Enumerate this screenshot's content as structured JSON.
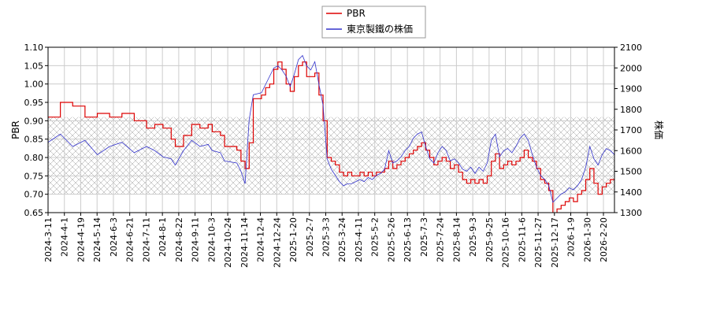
{
  "chart_data": {
    "type": "line",
    "left_axis": {
      "label": "PBR",
      "ylim": [
        0.65,
        1.1
      ],
      "ticks": [
        "0.65",
        "0.70",
        "0.75",
        "0.80",
        "0.85",
        "0.90",
        "0.95",
        "1.00",
        "1.05",
        "1.10"
      ]
    },
    "right_axis": {
      "label": "株価",
      "ylim": [
        1300,
        2100
      ],
      "ticks": [
        "1300",
        "1400",
        "1500",
        "1600",
        "1700",
        "1800",
        "1900",
        "2000",
        "2100"
      ]
    },
    "x_ticks": [
      "2024-3-11",
      "2024-4-1",
      "2024-4-19",
      "2024-5-14",
      "2024-6-3",
      "2024-6-21",
      "2024-7-11",
      "2024-8-1",
      "2024-8-22",
      "2024-9-11",
      "2024-10-3",
      "2024-10-24",
      "2024-11-14",
      "2024-12-4",
      "2024-12-24",
      "2025-1-20",
      "2025-2-7",
      "2025-3-3",
      "2025-3-24",
      "2025-4-11",
      "2025-5-2",
      "2025-5-26",
      "2025-6-13",
      "2025-7-3",
      "2025-7-24",
      "2025-8-14",
      "2025-9-3",
      "2025-9-25",
      "2025-10-16",
      "2025-11-6",
      "2025-11-27",
      "2025-12-17",
      "2026-1-9",
      "2026-1-30",
      "2026-2-20"
    ],
    "grid": true,
    "band": {
      "axis": "left",
      "range": [
        0.7,
        0.91
      ],
      "pattern": "crosshatch"
    },
    "legend": {
      "placement": "top-center"
    },
    "series": [
      {
        "name": "PBR",
        "axis": "left",
        "color": "#dd0000",
        "values": [
          [
            0,
            0.91
          ],
          [
            3,
            0.95
          ],
          [
            6,
            0.94
          ],
          [
            9,
            0.91
          ],
          [
            12,
            0.92
          ],
          [
            15,
            0.91
          ],
          [
            18,
            0.92
          ],
          [
            21,
            0.9
          ],
          [
            24,
            0.88
          ],
          [
            26,
            0.89
          ],
          [
            28,
            0.88
          ],
          [
            30,
            0.85
          ],
          [
            31,
            0.83
          ],
          [
            33,
            0.86
          ],
          [
            35,
            0.89
          ],
          [
            37,
            0.88
          ],
          [
            39,
            0.89
          ],
          [
            40,
            0.87
          ],
          [
            42,
            0.86
          ],
          [
            43,
            0.83
          ],
          [
            46,
            0.82
          ],
          [
            47,
            0.79
          ],
          [
            48,
            0.77
          ],
          [
            49,
            0.84
          ],
          [
            50,
            0.96
          ],
          [
            52,
            0.97
          ],
          [
            53,
            0.99
          ],
          [
            54,
            1.0
          ],
          [
            55,
            1.04
          ],
          [
            56,
            1.06
          ],
          [
            57,
            1.04
          ],
          [
            58,
            1.0
          ],
          [
            59,
            0.98
          ],
          [
            60,
            1.02
          ],
          [
            61,
            1.05
          ],
          [
            62,
            1.06
          ],
          [
            63,
            1.02
          ],
          [
            64,
            1.02
          ],
          [
            65,
            1.03
          ],
          [
            66,
            0.97
          ],
          [
            67,
            0.9
          ],
          [
            68,
            0.8
          ],
          [
            69,
            0.79
          ],
          [
            70,
            0.78
          ],
          [
            71,
            0.76
          ],
          [
            72,
            0.75
          ],
          [
            73,
            0.76
          ],
          [
            74,
            0.75
          ],
          [
            75,
            0.75
          ],
          [
            76,
            0.76
          ],
          [
            77,
            0.75
          ],
          [
            78,
            0.76
          ],
          [
            79,
            0.75
          ],
          [
            80,
            0.76
          ],
          [
            81,
            0.76
          ],
          [
            82,
            0.77
          ],
          [
            83,
            0.79
          ],
          [
            84,
            0.77
          ],
          [
            85,
            0.78
          ],
          [
            86,
            0.79
          ],
          [
            87,
            0.8
          ],
          [
            88,
            0.81
          ],
          [
            89,
            0.82
          ],
          [
            90,
            0.83
          ],
          [
            91,
            0.84
          ],
          [
            92,
            0.82
          ],
          [
            93,
            0.8
          ],
          [
            94,
            0.78
          ],
          [
            95,
            0.79
          ],
          [
            96,
            0.8
          ],
          [
            97,
            0.79
          ],
          [
            98,
            0.77
          ],
          [
            99,
            0.78
          ],
          [
            100,
            0.76
          ],
          [
            101,
            0.74
          ],
          [
            102,
            0.73
          ],
          [
            103,
            0.74
          ],
          [
            104,
            0.73
          ],
          [
            105,
            0.74
          ],
          [
            106,
            0.73
          ],
          [
            107,
            0.75
          ],
          [
            108,
            0.79
          ],
          [
            109,
            0.81
          ],
          [
            110,
            0.77
          ],
          [
            111,
            0.78
          ],
          [
            112,
            0.79
          ],
          [
            113,
            0.78
          ],
          [
            114,
            0.79
          ],
          [
            115,
            0.8
          ],
          [
            116,
            0.82
          ],
          [
            117,
            0.8
          ],
          [
            118,
            0.79
          ],
          [
            119,
            0.77
          ],
          [
            120,
            0.74
          ],
          [
            121,
            0.73
          ],
          [
            122,
            0.71
          ],
          [
            123,
            0.64
          ],
          [
            124,
            0.66
          ],
          [
            125,
            0.67
          ],
          [
            126,
            0.68
          ],
          [
            127,
            0.69
          ],
          [
            128,
            0.68
          ],
          [
            129,
            0.7
          ],
          [
            130,
            0.71
          ],
          [
            131,
            0.74
          ],
          [
            132,
            0.77
          ],
          [
            133,
            0.73
          ],
          [
            134,
            0.7
          ],
          [
            135,
            0.72
          ],
          [
            136,
            0.73
          ],
          [
            137,
            0.74
          ],
          [
            138,
            0.73
          ]
        ]
      },
      {
        "name": "東京製鐵の株価",
        "axis": "right",
        "color": "#3333cc",
        "values": [
          [
            0,
            1640
          ],
          [
            3,
            1680
          ],
          [
            6,
            1620
          ],
          [
            9,
            1650
          ],
          [
            12,
            1580
          ],
          [
            15,
            1620
          ],
          [
            18,
            1640
          ],
          [
            21,
            1590
          ],
          [
            24,
            1620
          ],
          [
            26,
            1600
          ],
          [
            28,
            1570
          ],
          [
            30,
            1560
          ],
          [
            31,
            1530
          ],
          [
            33,
            1600
          ],
          [
            35,
            1650
          ],
          [
            37,
            1620
          ],
          [
            39,
            1630
          ],
          [
            40,
            1600
          ],
          [
            42,
            1590
          ],
          [
            43,
            1550
          ],
          [
            46,
            1540
          ],
          [
            47,
            1500
          ],
          [
            48,
            1440
          ],
          [
            49,
            1750
          ],
          [
            50,
            1870
          ],
          [
            52,
            1880
          ],
          [
            53,
            1920
          ],
          [
            54,
            1960
          ],
          [
            55,
            2000
          ],
          [
            56,
            2010
          ],
          [
            57,
            1990
          ],
          [
            58,
            1960
          ],
          [
            59,
            1910
          ],
          [
            60,
            1970
          ],
          [
            61,
            2040
          ],
          [
            62,
            2060
          ],
          [
            63,
            2010
          ],
          [
            64,
            1990
          ],
          [
            65,
            2030
          ],
          [
            66,
            1920
          ],
          [
            67,
            1820
          ],
          [
            68,
            1560
          ],
          [
            69,
            1510
          ],
          [
            70,
            1480
          ],
          [
            71,
            1450
          ],
          [
            72,
            1430
          ],
          [
            73,
            1440
          ],
          [
            74,
            1440
          ],
          [
            75,
            1450
          ],
          [
            76,
            1460
          ],
          [
            77,
            1450
          ],
          [
            78,
            1470
          ],
          [
            79,
            1460
          ],
          [
            80,
            1480
          ],
          [
            81,
            1490
          ],
          [
            82,
            1510
          ],
          [
            83,
            1600
          ],
          [
            84,
            1540
          ],
          [
            85,
            1550
          ],
          [
            86,
            1570
          ],
          [
            87,
            1600
          ],
          [
            88,
            1620
          ],
          [
            89,
            1660
          ],
          [
            90,
            1680
          ],
          [
            91,
            1690
          ],
          [
            92,
            1620
          ],
          [
            93,
            1560
          ],
          [
            94,
            1540
          ],
          [
            95,
            1590
          ],
          [
            96,
            1620
          ],
          [
            97,
            1600
          ],
          [
            98,
            1550
          ],
          [
            99,
            1560
          ],
          [
            100,
            1540
          ],
          [
            101,
            1510
          ],
          [
            102,
            1500
          ],
          [
            103,
            1520
          ],
          [
            104,
            1490
          ],
          [
            105,
            1520
          ],
          [
            106,
            1500
          ],
          [
            107,
            1540
          ],
          [
            108,
            1650
          ],
          [
            109,
            1680
          ],
          [
            110,
            1570
          ],
          [
            111,
            1600
          ],
          [
            112,
            1610
          ],
          [
            113,
            1590
          ],
          [
            114,
            1620
          ],
          [
            115,
            1660
          ],
          [
            116,
            1680
          ],
          [
            117,
            1650
          ],
          [
            118,
            1580
          ],
          [
            119,
            1520
          ],
          [
            120,
            1480
          ],
          [
            121,
            1460
          ],
          [
            122,
            1430
          ],
          [
            123,
            1350
          ],
          [
            124,
            1370
          ],
          [
            125,
            1390
          ],
          [
            126,
            1400
          ],
          [
            127,
            1420
          ],
          [
            128,
            1410
          ],
          [
            129,
            1430
          ],
          [
            130,
            1460
          ],
          [
            131,
            1520
          ],
          [
            132,
            1620
          ],
          [
            133,
            1560
          ],
          [
            134,
            1530
          ],
          [
            135,
            1580
          ],
          [
            136,
            1610
          ],
          [
            137,
            1600
          ],
          [
            138,
            1580
          ]
        ]
      }
    ]
  }
}
